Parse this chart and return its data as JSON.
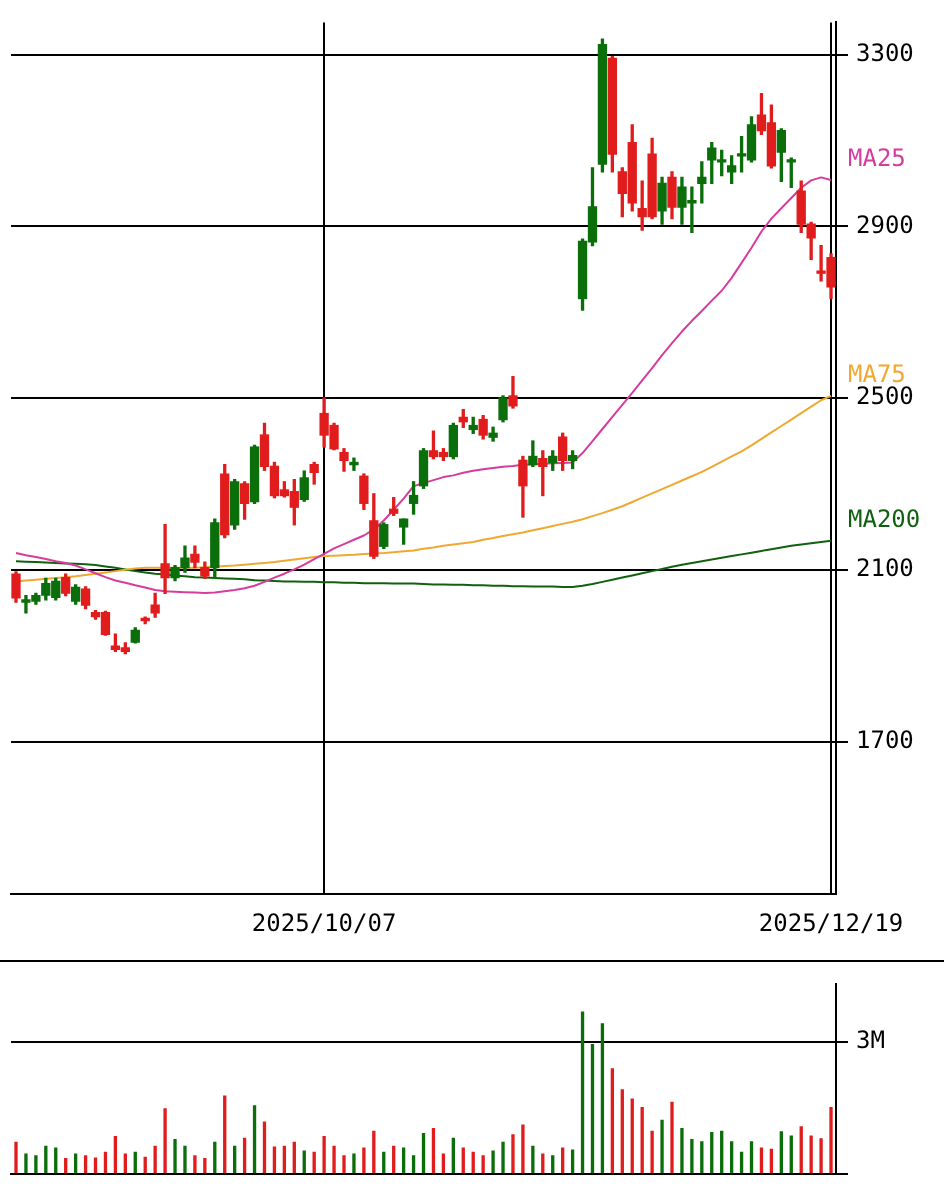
{
  "chart_data": [
    {
      "type": "candlestick",
      "categories": [
        null,
        null,
        null,
        null,
        null,
        null,
        null,
        null,
        null,
        null,
        null,
        null,
        null,
        null,
        null,
        null,
        null,
        null,
        null,
        null,
        null,
        null,
        null,
        null,
        null,
        null,
        null,
        null,
        null,
        null,
        null,
        "2025/10/07",
        null,
        null,
        null,
        null,
        null,
        null,
        null,
        null,
        null,
        null,
        null,
        null,
        null,
        null,
        null,
        null,
        null,
        null,
        null,
        null,
        null,
        null,
        null,
        null,
        null,
        null,
        null,
        null,
        null,
        null,
        null,
        null,
        null,
        null,
        null,
        null,
        null,
        null,
        null,
        null,
        null,
        null,
        null,
        null,
        null,
        null,
        null,
        null,
        null,
        null,
        "2025/12/19"
      ],
      "ohlc": [
        [
          2090,
          2095,
          2025,
          2035
        ],
        [
          2025,
          2040,
          2000,
          2030
        ],
        [
          2027,
          2045,
          2020,
          2040
        ],
        [
          2041,
          2080,
          2030,
          2068
        ],
        [
          2036,
          2080,
          2030,
          2073
        ],
        [
          2082,
          2090,
          2040,
          2046
        ],
        [
          2027,
          2065,
          2020,
          2059
        ],
        [
          2055,
          2060,
          2010,
          2018
        ],
        [
          2000,
          2005,
          1985,
          1991
        ],
        [
          2000,
          2003,
          1948,
          1950
        ],
        [
          1922,
          1950,
          1910,
          1915
        ],
        [
          1918,
          1930,
          1905,
          1910
        ],
        [
          1932,
          1965,
          1930,
          1959
        ],
        [
          1985,
          1990,
          1975,
          1982
        ],
        [
          2018,
          2045,
          1990,
          2000
        ],
        [
          2114,
          2205,
          2045,
          2082
        ],
        [
          2082,
          2110,
          2075,
          2105
        ],
        [
          2105,
          2155,
          2095,
          2127
        ],
        [
          2136,
          2155,
          2105,
          2118
        ],
        [
          2105,
          2118,
          2080,
          2086
        ],
        [
          2105,
          2218,
          2080,
          2209
        ],
        [
          2323,
          2345,
          2175,
          2182
        ],
        [
          2205,
          2310,
          2195,
          2305
        ],
        [
          2300,
          2305,
          2218,
          2255
        ],
        [
          2259,
          2390,
          2255,
          2386
        ],
        [
          2414,
          2441,
          2332,
          2341
        ],
        [
          2341,
          2350,
          2268,
          2273
        ],
        [
          2286,
          2305,
          2270,
          2273
        ],
        [
          2282,
          2310,
          2205,
          2246
        ],
        [
          2264,
          2330,
          2260,
          2314
        ],
        [
          2345,
          2350,
          2300,
          2327
        ],
        [
          2464,
          2500,
          2386,
          2414
        ],
        [
          2436,
          2441,
          2380,
          2382
        ],
        [
          2373,
          2382,
          2330,
          2355
        ],
        [
          2345,
          2360,
          2332,
          2350
        ],
        [
          2318,
          2323,
          2241,
          2255
        ],
        [
          2214,
          2277,
          2127,
          2132
        ],
        [
          2155,
          2209,
          2150,
          2205
        ],
        [
          2241,
          2268,
          2227,
          2232
        ],
        [
          2200,
          2218,
          2160,
          2218
        ],
        [
          2255,
          2305,
          2230,
          2273
        ],
        [
          2296,
          2382,
          2290,
          2377
        ],
        [
          2377,
          2423,
          2359,
          2364
        ],
        [
          2373,
          2382,
          2355,
          2364
        ],
        [
          2364,
          2441,
          2359,
          2436
        ],
        [
          2455,
          2473,
          2432,
          2445
        ],
        [
          2427,
          2455,
          2418,
          2436
        ],
        [
          2450,
          2459,
          2405,
          2414
        ],
        [
          2409,
          2432,
          2400,
          2418
        ],
        [
          2450,
          2505,
          2445,
          2500
        ],
        [
          2505,
          2550,
          2477,
          2482
        ],
        [
          2355,
          2364,
          2223,
          2296
        ],
        [
          2345,
          2400,
          2341,
          2364
        ],
        [
          2359,
          2377,
          2273,
          2341
        ],
        [
          2350,
          2377,
          2332,
          2364
        ],
        [
          2409,
          2418,
          2332,
          2355
        ],
        [
          2355,
          2377,
          2336,
          2366
        ],
        [
          2732,
          2870,
          2705,
          2865
        ],
        [
          2864,
          3036,
          2855,
          2945
        ],
        [
          3045,
          3336,
          3027,
          3323
        ],
        [
          3291,
          3295,
          3027,
          3068
        ],
        [
          3027,
          3036,
          2923,
          2977
        ],
        [
          3095,
          3136,
          2936,
          2955
        ],
        [
          2941,
          3005,
          2891,
          2923
        ],
        [
          3068,
          3105,
          2918,
          2923
        ],
        [
          2936,
          3014,
          2905,
          3000
        ],
        [
          3014,
          3027,
          2918,
          2945
        ],
        [
          2945,
          3014,
          2905,
          2991
        ],
        [
          2955,
          2991,
          2886,
          2959
        ],
        [
          3000,
          3050,
          2955,
          3014
        ],
        [
          3055,
          3095,
          3000,
          3082
        ],
        [
          3050,
          3077,
          3018,
          3055
        ],
        [
          3027,
          3064,
          3000,
          3041
        ],
        [
          3064,
          3109,
          3027,
          3068
        ],
        [
          3055,
          3155,
          3050,
          3136
        ],
        [
          3159,
          3209,
          3114,
          3123
        ],
        [
          3141,
          3182,
          3036,
          3041
        ],
        [
          3073,
          3127,
          3005,
          3123
        ],
        [
          3050,
          3059,
          2991,
          3055
        ],
        [
          2982,
          3005,
          2886,
          2905
        ],
        [
          2905,
          2909,
          2823,
          2873
        ],
        [
          2795,
          2855,
          2773,
          2791
        ],
        [
          2827,
          2836,
          2732,
          2759
        ]
      ],
      "series": [
        {
          "name": "MA25",
          "type": "line",
          "color": "#d63c9c",
          "values": [
            2139,
            2134,
            2130,
            2125,
            2120,
            2116,
            2110,
            2101,
            2092,
            2083,
            2075,
            2070,
            2064,
            2059,
            2053,
            2050,
            2049,
            2048,
            2047,
            2046,
            2047,
            2050,
            2053,
            2057,
            2063,
            2072,
            2082,
            2091,
            2101,
            2112,
            2125,
            2137,
            2150,
            2160,
            2170,
            2180,
            2194,
            2215,
            2240,
            2266,
            2295,
            2302,
            2309,
            2316,
            2320,
            2326,
            2331,
            2334,
            2337,
            2340,
            2342,
            2345,
            2346,
            2347,
            2348,
            2349,
            2350,
            2372,
            2400,
            2428,
            2456,
            2484,
            2512,
            2541,
            2570,
            2600,
            2628,
            2655,
            2680,
            2703,
            2727,
            2750,
            2780,
            2815,
            2850,
            2888,
            2918,
            2942,
            2966,
            2990,
            3007,
            3014,
            3008
          ]
        },
        {
          "name": "MA75",
          "type": "line",
          "color": "#f0a830",
          "values": [
            2073,
            2075,
            2077,
            2079,
            2081,
            2083,
            2085,
            2088,
            2091,
            2094,
            2097,
            2100,
            2103,
            2105,
            2105,
            2105,
            2105,
            2105,
            2105,
            2106,
            2107,
            2109,
            2110,
            2112,
            2114,
            2116,
            2118,
            2121,
            2124,
            2127,
            2130,
            2132,
            2133,
            2134,
            2135,
            2137,
            2138,
            2139,
            2141,
            2143,
            2145,
            2149,
            2152,
            2156,
            2159,
            2162,
            2165,
            2170,
            2174,
            2179,
            2183,
            2187,
            2192,
            2197,
            2202,
            2207,
            2212,
            2218,
            2225,
            2232,
            2240,
            2248,
            2258,
            2268,
            2278,
            2288,
            2298,
            2308,
            2318,
            2328,
            2340,
            2352,
            2364,
            2376,
            2390,
            2405,
            2420,
            2435,
            2450,
            2465,
            2480,
            2495,
            2505
          ]
        },
        {
          "name": "MA200",
          "type": "line",
          "color": "#106010",
          "values": [
            2120,
            2119,
            2118,
            2117,
            2116,
            2115,
            2114,
            2113,
            2111,
            2108,
            2105,
            2101,
            2097,
            2094,
            2091,
            2089,
            2087,
            2085,
            2083,
            2082,
            2081,
            2080,
            2079,
            2078,
            2076,
            2075,
            2074,
            2073,
            2073,
            2072,
            2072,
            2071,
            2071,
            2070,
            2070,
            2069,
            2069,
            2069,
            2068,
            2068,
            2068,
            2067,
            2066,
            2066,
            2065,
            2065,
            2064,
            2064,
            2063,
            2063,
            2062,
            2062,
            2061,
            2061,
            2061,
            2060,
            2060,
            2063,
            2067,
            2072,
            2077,
            2082,
            2087,
            2092,
            2097,
            2102,
            2107,
            2112,
            2116,
            2120,
            2124,
            2128,
            2132,
            2136,
            2140,
            2144,
            2148,
            2152,
            2156,
            2159,
            2162,
            2165,
            2168
          ]
        }
      ],
      "ylim": [
        1345,
        3375
      ],
      "yticks": [
        1700,
        2100,
        2500,
        2900,
        3300
      ],
      "grid": true
    },
    {
      "type": "bar",
      "categories": [
        null,
        null,
        null,
        null,
        null,
        null,
        null,
        null,
        null,
        null,
        null,
        null,
        null,
        null,
        null,
        null,
        null,
        null,
        null,
        null,
        null,
        null,
        null,
        null,
        null,
        null,
        null,
        null,
        null,
        null,
        null,
        null,
        null,
        null,
        null,
        null,
        null,
        null,
        null,
        null,
        null,
        null,
        null,
        null,
        null,
        null,
        null,
        null,
        null,
        null,
        null,
        null,
        null,
        null,
        null,
        null,
        null,
        null,
        null,
        null,
        null,
        null,
        null,
        null,
        null,
        null,
        null,
        null,
        null,
        null,
        null,
        null,
        null,
        null,
        null,
        null,
        null,
        null,
        null,
        null,
        null,
        null,
        null
      ],
      "values": [
        0.71,
        0.44,
        0.4,
        0.62,
        0.58,
        0.34,
        0.44,
        0.4,
        0.35,
        0.48,
        0.84,
        0.44,
        0.48,
        0.37,
        0.62,
        1.47,
        0.77,
        0.62,
        0.4,
        0.34,
        0.71,
        1.76,
        0.62,
        0.8,
        1.54,
        1.17,
        0.6,
        0.62,
        0.71,
        0.51,
        0.48,
        0.84,
        0.62,
        0.4,
        0.44,
        0.58,
        0.96,
        0.48,
        0.62,
        0.58,
        0.4,
        0.91,
        1.02,
        0.44,
        0.8,
        0.58,
        0.48,
        0.4,
        0.51,
        0.71,
        0.88,
        1.1,
        0.62,
        0.44,
        0.4,
        0.58,
        0.53,
        3.67,
        2.93,
        3.4,
        2.38,
        1.9,
        1.69,
        1.5,
        0.96,
        1.21,
        1.62,
        1.02,
        0.77,
        0.72,
        0.93,
        0.96,
        0.72,
        0.48,
        0.72,
        0.58,
        0.55,
        0.95,
        0.85,
        1.06,
        0.85,
        0.79,
        1.5
      ],
      "colors": [
        "#e01c1c",
        "#0a6e0a",
        "#0a6e0a",
        "#0a6e0a",
        "#0a6e0a",
        "#e01c1c",
        "#0a6e0a",
        "#e01c1c",
        "#e01c1c",
        "#e01c1c",
        "#e01c1c",
        "#e01c1c",
        "#0a6e0a",
        "#e01c1c",
        "#e01c1c",
        "#e01c1c",
        "#0a6e0a",
        "#0a6e0a",
        "#e01c1c",
        "#e01c1c",
        "#0a6e0a",
        "#e01c1c",
        "#0a6e0a",
        "#e01c1c",
        "#0a6e0a",
        "#e01c1c",
        "#e01c1c",
        "#e01c1c",
        "#e01c1c",
        "#0a6e0a",
        "#e01c1c",
        "#e01c1c",
        "#e01c1c",
        "#e01c1c",
        "#0a6e0a",
        "#e01c1c",
        "#e01c1c",
        "#0a6e0a",
        "#e01c1c",
        "#0a6e0a",
        "#0a6e0a",
        "#0a6e0a",
        "#e01c1c",
        "#e01c1c",
        "#0a6e0a",
        "#e01c1c",
        "#e01c1c",
        "#e01c1c",
        "#0a6e0a",
        "#0a6e0a",
        "#e01c1c",
        "#e01c1c",
        "#0a6e0a",
        "#e01c1c",
        "#0a6e0a",
        "#e01c1c",
        "#0a6e0a",
        "#0a6e0a",
        "#0a6e0a",
        "#0a6e0a",
        "#e01c1c",
        "#e01c1c",
        "#e01c1c",
        "#e01c1c",
        "#e01c1c",
        "#0a6e0a",
        "#e01c1c",
        "#0a6e0a",
        "#0a6e0a",
        "#0a6e0a",
        "#0a6e0a",
        "#0a6e0a",
        "#0a6e0a",
        "#0a6e0a",
        "#0a6e0a",
        "#e01c1c",
        "#e01c1c",
        "#0a6e0a",
        "#0a6e0a",
        "#e01c1c",
        "#e01c1c",
        "#e01c1c",
        "#e01c1c"
      ],
      "ylim": [
        0,
        4.3
      ],
      "yticks": [
        {
          "value": 0,
          "label": null
        },
        {
          "value": 3,
          "label": "3M"
        }
      ],
      "grid": "y"
    }
  ]
}
